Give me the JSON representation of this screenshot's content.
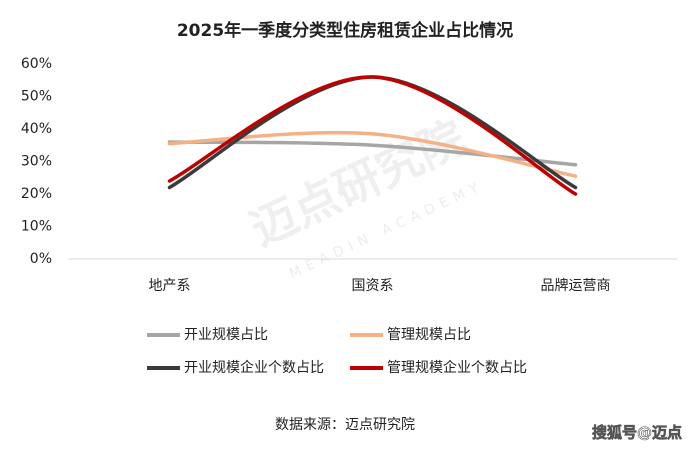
{
  "chart_data": {
    "type": "line",
    "title": "2025年一季度分类型住房租赁企业占比情况",
    "categories": [
      "地产系",
      "国资系",
      "品牌运营商"
    ],
    "series": [
      {
        "name": "开业规模占比",
        "color": "#a6a6a6",
        "values": [
          36,
          35,
          29
        ]
      },
      {
        "name": "管理规模占比",
        "color": "#f4b183",
        "values": [
          35.5,
          38.5,
          25.5
        ]
      },
      {
        "name": "开业规模企业个数占比",
        "color": "#3a3a3a",
        "values": [
          22,
          56,
          22
        ]
      },
      {
        "name": "管理规模企业个数占比",
        "color": "#c00000",
        "values": [
          24,
          56,
          20
        ]
      }
    ],
    "ylim": [
      0,
      60
    ],
    "yticks": [
      {
        "value": 0,
        "label": "0%"
      },
      {
        "value": 10,
        "label": "10%"
      },
      {
        "value": 20,
        "label": "20%"
      },
      {
        "value": 30,
        "label": "30%"
      },
      {
        "value": 40,
        "label": "40%"
      },
      {
        "value": 50,
        "label": "50%"
      },
      {
        "value": 60,
        "label": "60%"
      }
    ],
    "grid": false,
    "source": "数据来源：迈点研究院",
    "watermark": "迈点研究院",
    "watermark_en": "MEADIN ACADEMY",
    "footer": "搜狐号@迈点"
  }
}
